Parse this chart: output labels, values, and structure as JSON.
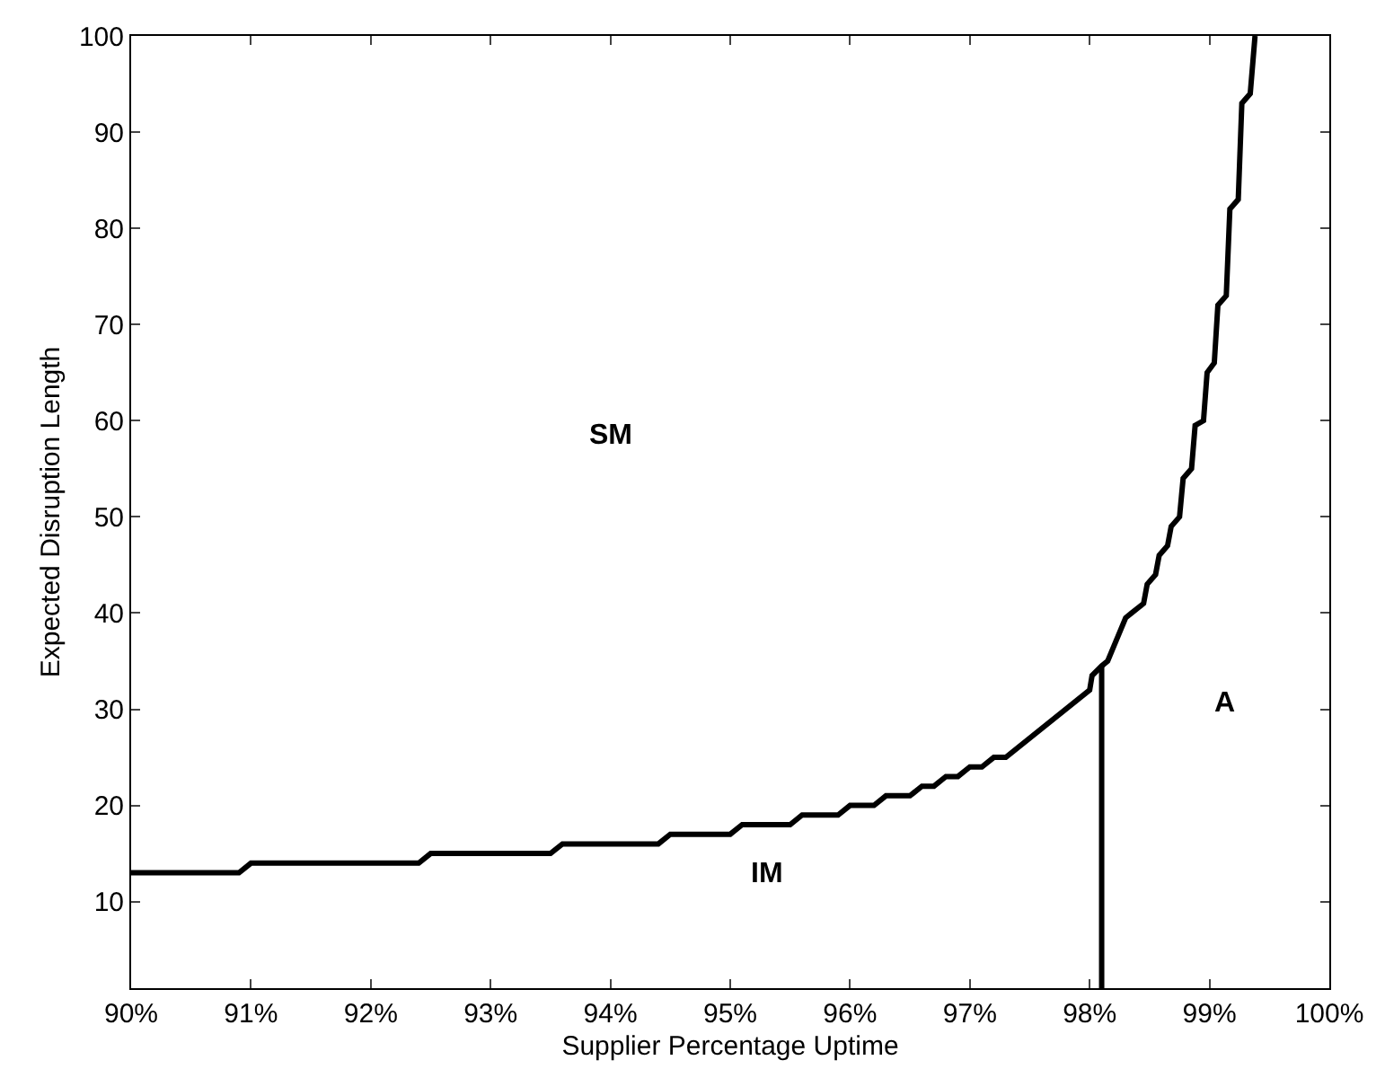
{
  "chart_data": {
    "type": "line",
    "xlabel": "Supplier Percentage Uptime",
    "ylabel": "Expected Disruption Length",
    "series": [
      {
        "color": "#000000",
        "x": [
          90,
          90.9,
          91.0,
          92.4,
          92.5,
          93.5,
          93.6,
          94.4,
          94.5,
          95.0,
          95.1,
          95.5,
          95.6,
          95.9,
          96.0,
          96.2,
          96.3,
          96.5,
          96.6,
          96.7,
          96.8,
          96.9,
          97.0,
          97.1,
          97.2,
          97.3,
          98.0,
          98.02,
          98.1,
          98.15,
          98.2,
          98.25,
          98.3,
          98.35,
          98.45,
          98.48,
          98.55,
          98.58,
          98.65,
          98.68,
          98.75,
          98.78,
          98.85,
          98.88,
          98.95,
          98.98,
          99.04,
          99.07,
          99.14,
          99.17,
          99.24,
          99.27,
          99.34,
          99.38
        ],
        "values": [
          13,
          13,
          14,
          14,
          15,
          15,
          16,
          16,
          17,
          17,
          18,
          18,
          19,
          19,
          20,
          20,
          21,
          21,
          22,
          22,
          23,
          23,
          24,
          24,
          25,
          25,
          32,
          33.5,
          34.5,
          35,
          36.5,
          38,
          39.5,
          40,
          41,
          43,
          44,
          46,
          47,
          49,
          50,
          54,
          55,
          59.5,
          60,
          65,
          66,
          72,
          73,
          82,
          83,
          93,
          94,
          100
        ]
      },
      {
        "color": "#000000",
        "x": [
          98.1,
          98.1
        ],
        "values": [
          1,
          34.5
        ]
      }
    ],
    "xlim": [
      90,
      100
    ],
    "ylim": [
      1,
      100
    ],
    "xticks": [
      {
        "value": 90,
        "label": "90%"
      },
      {
        "value": 91,
        "label": "91%"
      },
      {
        "value": 92,
        "label": "92%"
      },
      {
        "value": 93,
        "label": "93%"
      },
      {
        "value": 94,
        "label": "94%"
      },
      {
        "value": 95,
        "label": "95%"
      },
      {
        "value": 96,
        "label": "96%"
      },
      {
        "value": 97,
        "label": "97%"
      },
      {
        "value": 98,
        "label": "98%"
      },
      {
        "value": 99,
        "label": "99%"
      },
      {
        "value": 100,
        "label": "100%"
      }
    ],
    "yticks": [
      10,
      20,
      30,
      40,
      50,
      60,
      70,
      80,
      90,
      100
    ],
    "grid": false,
    "marker": "none",
    "line_style": "solid",
    "annotations": [
      "SM",
      "IM",
      "A"
    ]
  }
}
